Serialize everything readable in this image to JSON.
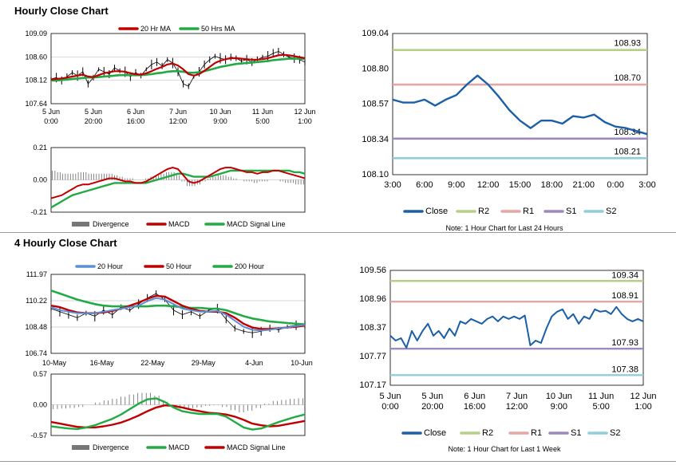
{
  "sections": [
    {
      "title": "Hourly Close Chart"
    },
    {
      "title": "4 Hourly Close Chart"
    }
  ],
  "colors": {
    "ma1": "#c00000",
    "ma2": "#22aa44",
    "price": "#000000",
    "close": "#1a5fa8",
    "r2": "#b5cf86",
    "r1": "#e6a6a6",
    "s1": "#9d88bf",
    "s2": "#92cddc",
    "hist": "#777777",
    "macd_red": "#c00000",
    "macd_green": "#22aa44",
    "grid": "#c8c8c8",
    "blue20": "#5b8fd6"
  },
  "chart_data": [
    {
      "id": "hourly_price",
      "type": "line",
      "legend": [
        "20 Hr MA",
        "50 Hrs MA"
      ],
      "ylim": [
        107.64,
        109.09
      ],
      "yticks": [
        "109.09",
        "108.60",
        "108.12",
        "107.64"
      ],
      "xticks": [
        [
          "5 Jun",
          "0:00"
        ],
        [
          "5 Jun",
          "20:00"
        ],
        [
          "6 Jun",
          "16:00"
        ],
        [
          "7 Jun",
          "12:00"
        ],
        [
          "10 Jun",
          "9:00"
        ],
        [
          "11 Jun",
          "5:00"
        ],
        [
          "12 Jun",
          "1:00"
        ]
      ],
      "price": [
        108.15,
        108.18,
        108.12,
        108.2,
        108.28,
        108.22,
        108.3,
        108.05,
        108.18,
        108.35,
        108.3,
        108.25,
        108.38,
        108.32,
        108.3,
        108.2,
        108.28,
        108.22,
        108.35,
        108.45,
        108.5,
        108.42,
        108.55,
        108.48,
        108.3,
        108.05,
        108.0,
        108.2,
        108.3,
        108.45,
        108.55,
        108.62,
        108.58,
        108.55,
        108.6,
        108.58,
        108.52,
        108.55,
        108.5,
        108.55,
        108.6,
        108.62,
        108.68,
        108.72,
        108.66,
        108.6,
        108.58,
        108.55,
        108.5
      ],
      "ma20": [
        108.14,
        108.15,
        108.16,
        108.18,
        108.2,
        108.22,
        108.24,
        108.2,
        108.19,
        108.23,
        108.27,
        108.29,
        108.31,
        108.31,
        108.3,
        108.27,
        108.25,
        108.24,
        108.27,
        108.31,
        108.36,
        108.4,
        108.45,
        108.47,
        108.43,
        108.35,
        108.25,
        108.22,
        108.25,
        108.32,
        108.4,
        108.48,
        108.53,
        108.56,
        108.58,
        108.58,
        108.57,
        108.56,
        108.55,
        108.55,
        108.56,
        108.58,
        108.61,
        108.64,
        108.65,
        108.64,
        108.62,
        108.6,
        108.58
      ],
      "ma50": [
        108.12,
        108.12,
        108.13,
        108.14,
        108.15,
        108.16,
        108.17,
        108.18,
        108.18,
        108.19,
        108.2,
        108.21,
        108.22,
        108.23,
        108.23,
        108.23,
        108.23,
        108.23,
        108.24,
        108.25,
        108.27,
        108.28,
        108.3,
        108.31,
        108.31,
        108.3,
        108.28,
        108.28,
        108.29,
        108.31,
        108.34,
        108.37,
        108.4,
        108.42,
        108.44,
        108.46,
        108.47,
        108.48,
        108.49,
        108.5,
        108.51,
        108.52,
        108.54,
        108.55,
        108.56,
        108.57,
        108.57,
        108.57,
        108.57
      ]
    },
    {
      "id": "hourly_macd",
      "type": "line",
      "legend": [
        "Divergence",
        "MACD",
        "MACD Signal Line"
      ],
      "ylim": [
        -0.21,
        0.21
      ],
      "yticks": [
        "0.21",
        "0.00",
        "-0.21"
      ],
      "macd": [
        -0.12,
        -0.11,
        -0.1,
        -0.08,
        -0.06,
        -0.04,
        -0.03,
        -0.03,
        -0.02,
        -0.01,
        0.0,
        0.01,
        0.01,
        0.0,
        -0.01,
        -0.01,
        -0.02,
        -0.02,
        -0.01,
        0.01,
        0.03,
        0.05,
        0.07,
        0.08,
        0.07,
        0.03,
        -0.01,
        -0.02,
        -0.01,
        0.01,
        0.03,
        0.05,
        0.07,
        0.08,
        0.08,
        0.07,
        0.06,
        0.05,
        0.05,
        0.04,
        0.05,
        0.05,
        0.06,
        0.06,
        0.05,
        0.04,
        0.03,
        0.02,
        0.01
      ],
      "signal": [
        -0.18,
        -0.16,
        -0.14,
        -0.12,
        -0.1,
        -0.09,
        -0.08,
        -0.07,
        -0.06,
        -0.05,
        -0.04,
        -0.03,
        -0.02,
        -0.02,
        -0.02,
        -0.02,
        -0.02,
        -0.02,
        -0.02,
        -0.01,
        0.0,
        0.01,
        0.02,
        0.03,
        0.04,
        0.04,
        0.03,
        0.02,
        0.02,
        0.02,
        0.02,
        0.03,
        0.04,
        0.05,
        0.06,
        0.06,
        0.06,
        0.06,
        0.06,
        0.06,
        0.06,
        0.06,
        0.06,
        0.06,
        0.06,
        0.06,
        0.05,
        0.05,
        0.04
      ],
      "divergence": [
        0.06,
        0.05,
        0.04,
        0.04,
        0.04,
        0.05,
        0.05,
        0.04,
        0.04,
        0.04,
        0.04,
        0.04,
        0.03,
        0.02,
        0.01,
        0.01,
        0.0,
        0.0,
        0.01,
        0.02,
        0.03,
        0.04,
        0.05,
        0.05,
        0.03,
        -0.01,
        -0.04,
        -0.04,
        -0.03,
        -0.01,
        0.01,
        0.02,
        0.03,
        0.03,
        0.02,
        0.01,
        0.0,
        -0.01,
        -0.01,
        -0.02,
        -0.01,
        -0.01,
        0.0,
        0.0,
        -0.01,
        -0.02,
        -0.02,
        -0.03,
        -0.03
      ]
    },
    {
      "id": "hourly_levels",
      "type": "line",
      "legend": [
        "Close",
        "R2",
        "R1",
        "S1",
        "S2"
      ],
      "ylim": [
        108.1,
        109.04
      ],
      "yticks": [
        "109.04",
        "108.80",
        "108.57",
        "108.34",
        "108.10"
      ],
      "xticks": [
        "3:00",
        "6:00",
        "9:00",
        "12:00",
        "15:00",
        "18:00",
        "21:00",
        "0:00",
        "3:00"
      ],
      "close": [
        108.6,
        108.58,
        108.58,
        108.6,
        108.56,
        108.6,
        108.63,
        108.7,
        108.76,
        108.7,
        108.62,
        108.53,
        108.46,
        108.41,
        108.46,
        108.46,
        108.44,
        108.49,
        108.48,
        108.5,
        108.45,
        108.42,
        108.41,
        108.39,
        108.37
      ],
      "levels": {
        "R2": 108.93,
        "R1": 108.7,
        "S1": 108.34,
        "S2": 108.21
      },
      "level_labels": {
        "R2": "108.93",
        "R1": "108.70",
        "S1": "108.34",
        "S2": "108.21"
      },
      "note": "Note: 1 Hour Chart for Last 24 Hours"
    },
    {
      "id": "four_hourly_price",
      "type": "line",
      "legend": [
        "20 Hour",
        "50 Hour",
        "200 Hour"
      ],
      "ylim": [
        106.74,
        111.97
      ],
      "yticks": [
        "111.97",
        "110.22",
        "108.48",
        "106.74"
      ],
      "xticks": [
        "10-May",
        "16-May",
        "22-May",
        "29-May",
        "4-Jun",
        "10-Jun"
      ],
      "price": [
        109.7,
        109.5,
        109.3,
        109.1,
        109.4,
        109.2,
        109.6,
        109.3,
        109.8,
        109.6,
        110.0,
        110.4,
        110.7,
        110.3,
        109.6,
        109.3,
        109.5,
        109.2,
        109.6,
        109.7,
        109.0,
        108.4,
        108.2,
        108.1,
        108.2,
        108.4,
        108.3,
        108.5,
        108.6,
        108.65
      ],
      "h20": [
        109.8,
        109.6,
        109.5,
        109.4,
        109.4,
        109.4,
        109.5,
        109.6,
        109.7,
        109.8,
        109.9,
        110.2,
        110.4,
        110.3,
        110.0,
        109.7,
        109.6,
        109.5,
        109.5,
        109.55,
        109.3,
        108.9,
        108.5,
        108.3,
        108.25,
        108.3,
        108.4,
        108.45,
        108.55,
        108.62
      ],
      "h50": [
        109.9,
        109.8,
        109.6,
        109.45,
        109.4,
        109.4,
        109.45,
        109.55,
        109.7,
        109.9,
        110.1,
        110.35,
        110.55,
        110.5,
        110.2,
        109.9,
        109.7,
        109.55,
        109.5,
        109.5,
        109.4,
        109.1,
        108.7,
        108.45,
        108.35,
        108.35,
        108.4,
        108.45,
        108.5,
        108.58
      ],
      "h200": [
        110.9,
        110.7,
        110.5,
        110.3,
        110.15,
        110.0,
        109.9,
        109.85,
        109.85,
        109.85,
        109.85,
        109.85,
        109.9,
        109.9,
        109.85,
        109.8,
        109.75,
        109.75,
        109.7,
        109.7,
        109.6,
        109.4,
        109.2,
        109.05,
        108.95,
        108.85,
        108.8,
        108.75,
        108.7,
        108.66
      ]
    },
    {
      "id": "four_hourly_macd",
      "type": "line",
      "legend": [
        "Divergence",
        "MACD",
        "MACD Signal Line"
      ],
      "ylim": [
        -0.57,
        0.57
      ],
      "yticks": [
        "0.57",
        "0.00",
        "-0.57"
      ],
      "macd": [
        -0.4,
        -0.42,
        -0.44,
        -0.45,
        -0.42,
        -0.38,
        -0.32,
        -0.26,
        -0.18,
        -0.08,
        0.02,
        0.1,
        0.12,
        0.05,
        -0.05,
        -0.12,
        -0.15,
        -0.17,
        -0.17,
        -0.17,
        -0.22,
        -0.32,
        -0.42,
        -0.46,
        -0.44,
        -0.38,
        -0.32,
        -0.27,
        -0.22,
        -0.18
      ],
      "signal": [
        -0.32,
        -0.35,
        -0.38,
        -0.41,
        -0.42,
        -0.42,
        -0.4,
        -0.37,
        -0.33,
        -0.27,
        -0.2,
        -0.12,
        -0.05,
        -0.01,
        -0.02,
        -0.05,
        -0.09,
        -0.12,
        -0.15,
        -0.16,
        -0.18,
        -0.22,
        -0.28,
        -0.35,
        -0.38,
        -0.4,
        -0.39,
        -0.36,
        -0.33,
        -0.3
      ],
      "divergence": [
        -0.08,
        -0.07,
        -0.06,
        -0.04,
        0.0,
        0.04,
        0.08,
        0.11,
        0.15,
        0.19,
        0.22,
        0.22,
        0.17,
        0.06,
        -0.03,
        -0.07,
        -0.06,
        -0.05,
        -0.02,
        -0.01,
        -0.04,
        -0.1,
        -0.14,
        -0.11,
        -0.06,
        0.02,
        0.07,
        0.09,
        0.11,
        0.12
      ]
    },
    {
      "id": "four_hourly_levels",
      "type": "line",
      "legend": [
        "Close",
        "R2",
        "R1",
        "S1",
        "S2"
      ],
      "ylim": [
        107.17,
        109.56
      ],
      "yticks": [
        "109.56",
        "108.96",
        "108.37",
        "107.77",
        "107.17"
      ],
      "xticks": [
        [
          "5 Jun",
          "0:00"
        ],
        [
          "5 Jun",
          "20:00"
        ],
        [
          "6 Jun",
          "16:00"
        ],
        [
          "7 Jun",
          "12:00"
        ],
        [
          "10 Jun",
          "9:00"
        ],
        [
          "11 Jun",
          "5:00"
        ],
        [
          "12 Jun",
          "1:00"
        ]
      ],
      "close": [
        108.2,
        108.1,
        108.15,
        107.95,
        108.3,
        108.1,
        108.3,
        108.45,
        108.2,
        108.3,
        108.15,
        108.35,
        108.2,
        108.5,
        108.45,
        108.55,
        108.5,
        108.45,
        108.55,
        108.6,
        108.5,
        108.6,
        108.55,
        108.6,
        108.55,
        108.62,
        108.0,
        108.1,
        108.05,
        108.35,
        108.6,
        108.7,
        108.75,
        108.55,
        108.65,
        108.45,
        108.6,
        108.55,
        108.75,
        108.7,
        108.72,
        108.65,
        108.8,
        108.65,
        108.55,
        108.5,
        108.55,
        108.5
      ],
      "levels": {
        "R2": 109.34,
        "R1": 108.91,
        "S1": 107.93,
        "S2": 107.38
      },
      "level_labels": {
        "R2": "109.34",
        "R1": "108.91",
        "S1": "107.93",
        "S2": "107.38"
      },
      "note": "Note: 1 Hour Chart for Last 1 Week"
    }
  ]
}
